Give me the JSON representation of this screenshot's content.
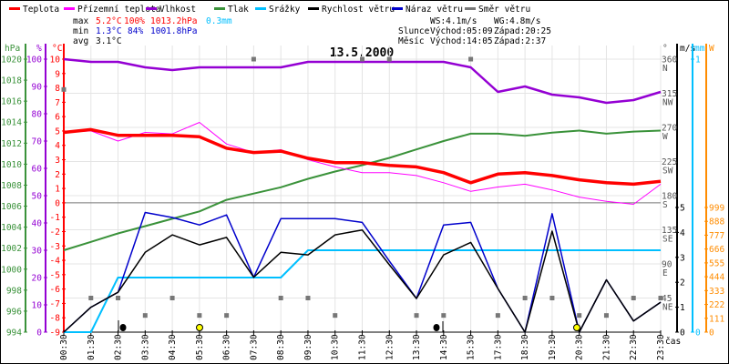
{
  "legend": [
    {
      "label": "Teplota",
      "color": "#ff0000"
    },
    {
      "label": "Přízemní teplota",
      "color": "#ff00ff"
    },
    {
      "label": "Vlhkost",
      "color": "#9400d3"
    },
    {
      "label": "Tlak",
      "color": "#3a923a"
    },
    {
      "label": "Srážky",
      "color": "#00bfff"
    },
    {
      "label": "Rychlost větru",
      "color": "#000000"
    },
    {
      "label": "Náraz větru",
      "color": "#0000cc"
    },
    {
      "label": "Směr větru",
      "color": "#777777"
    }
  ],
  "stats": {
    "max_label": "max",
    "min_label": "min",
    "avg_label": "avg",
    "max_temp": "5.2°C",
    "max_hum": "100%",
    "max_press": "1013.2hPa",
    "max_rain": "0.3mm",
    "min_temp": "1.3°C",
    "min_hum": "84%",
    "min_press": "1001.8hPa",
    "avg_temp": "3.1°C",
    "ws": "WS:4.1m/s",
    "wg": "WG:4.8m/s",
    "sun_label": "Slunce",
    "sunrise": "Východ:05:09",
    "sunset": "Západ:20:25",
    "moon_label": "Měsíc",
    "moonrise": "Východ:14:05",
    "moonset": "Západ:2:37"
  },
  "colors": {
    "temp": "#ff0000",
    "feels": "#ff00ff",
    "hum": "#9400d3",
    "press": "#3a923a",
    "rain": "#00bfff",
    "wind": "#000000",
    "gust": "#0000cc",
    "dir": "#777777",
    "solar": "#ff8c00",
    "max": "#ff0000",
    "min": "#0000cc"
  },
  "chart_data": {
    "type": "line",
    "title": "13.5.2000",
    "xlabel": "čas",
    "x": [
      "00:30",
      "01:30",
      "02:30",
      "03:30",
      "04:30",
      "05:30",
      "06:30",
      "07:30",
      "08:30",
      "09:30",
      "10:30",
      "11:30",
      "12:30",
      "13:30",
      "14:30",
      "15:30",
      "17:30",
      "18:30",
      "19:30",
      "20:30",
      "21:30",
      "22:30",
      "23:30"
    ],
    "axes": {
      "pressure": {
        "unit": "hPa",
        "range": [
          994,
          1020
        ],
        "ticks": [
          994,
          996,
          998,
          1000,
          1002,
          1004,
          1006,
          1008,
          1010,
          1012,
          1014,
          1016,
          1018,
          1020
        ]
      },
      "humidity": {
        "unit": "%",
        "range": [
          0,
          100
        ],
        "ticks": [
          0,
          10,
          20,
          30,
          40,
          50,
          60,
          70,
          80,
          90,
          100
        ]
      },
      "temperature": {
        "unit": "°C",
        "range": [
          -9,
          10
        ],
        "ticks": [
          -9,
          -8,
          -7,
          -6,
          -5,
          -4,
          -3,
          -2,
          -1,
          0,
          1,
          2,
          3,
          4,
          5,
          6,
          7,
          8,
          9,
          10
        ]
      },
      "direction": {
        "unit": "°",
        "range": [
          0,
          360
        ],
        "ticks": [
          45,
          90,
          135,
          180,
          225,
          270,
          315,
          360
        ],
        "tick_names": [
          "NE",
          "E",
          "SE",
          "S",
          "SW",
          "W",
          "NW",
          "N"
        ]
      },
      "wind": {
        "unit": "m/s",
        "range": [
          0,
          5
        ],
        "ticks": [
          0,
          1,
          2,
          3,
          4,
          5
        ]
      },
      "rain": {
        "unit": "mm",
        "range": [
          0,
          1
        ],
        "ticks": [
          0,
          1
        ]
      },
      "solar": {
        "unit": "W",
        "range": [
          0,
          999
        ],
        "ticks": [
          0,
          111,
          222,
          333,
          444,
          555,
          666,
          777,
          888,
          999
        ]
      }
    },
    "series": [
      {
        "name": "Teplota",
        "axis": "temperature",
        "values": [
          4.9,
          5.1,
          4.7,
          4.7,
          4.7,
          4.6,
          3.8,
          3.5,
          3.6,
          3.1,
          2.8,
          2.8,
          2.6,
          2.5,
          2.1,
          1.4,
          2.0,
          2.1,
          1.9,
          1.6,
          1.4,
          1.3,
          1.5
        ]
      },
      {
        "name": "Přízemní teplota",
        "axis": "temperature",
        "values": [
          4.9,
          5.0,
          4.3,
          4.9,
          4.8,
          5.6,
          4.1,
          3.5,
          3.7,
          3.0,
          2.5,
          2.1,
          2.1,
          1.9,
          1.4,
          0.8,
          1.1,
          1.3,
          0.9,
          0.4,
          0.1,
          -0.1,
          1.3
        ]
      },
      {
        "name": "Vlhkost",
        "axis": "humidity",
        "values": [
          100,
          99,
          99,
          97,
          96,
          97,
          97,
          97,
          97,
          99,
          99,
          99,
          99,
          99,
          99,
          97,
          88,
          90,
          87,
          86,
          84,
          85,
          88
        ]
      },
      {
        "name": "Tlak",
        "axis": "pressure",
        "values": [
          1001.8,
          1002.6,
          1003.4,
          1004.1,
          1004.8,
          1005.5,
          1006.6,
          1007.2,
          1007.8,
          1008.6,
          1009.3,
          1009.9,
          1010.6,
          1011.4,
          1012.2,
          1012.9,
          1012.9,
          1012.7,
          1013.0,
          1013.2,
          1012.9,
          1013.1,
          1013.2
        ]
      },
      {
        "name": "Srážky",
        "axis": "rain",
        "values": [
          0,
          0,
          0.2,
          0.2,
          0.2,
          0.2,
          0.2,
          0.2,
          0.2,
          0.3,
          0.3,
          0.3,
          0.3,
          0.3,
          0.3,
          0.3,
          0.3,
          0.3,
          0.3,
          0.3,
          0.3,
          0.3,
          0.3
        ]
      },
      {
        "name": "Náraz větru",
        "axis": "wind",
        "values": [
          0,
          1.0,
          1.6,
          4.8,
          4.6,
          4.3,
          4.7,
          2.2,
          4.55,
          4.55,
          4.55,
          4.4,
          2.85,
          1.35,
          4.3,
          4.4,
          1.75,
          0,
          4.75,
          0,
          2.1,
          0.45,
          1.2
        ]
      },
      {
        "name": "Rychlost větru",
        "axis": "wind",
        "values": [
          0,
          1.0,
          1.6,
          3.2,
          3.9,
          3.5,
          3.8,
          2.2,
          3.2,
          3.1,
          3.9,
          4.1,
          2.7,
          1.35,
          3.1,
          3.6,
          1.75,
          0,
          4.05,
          0,
          2.1,
          0.45,
          1.2
        ]
      },
      {
        "name": "Směr větru",
        "axis": "direction",
        "values": [
          320,
          45,
          45,
          22,
          45,
          22,
          22,
          360,
          45,
          45,
          22,
          360,
          360,
          22,
          22,
          360,
          22,
          45,
          45,
          22,
          22,
          45,
          45
        ]
      }
    ]
  }
}
